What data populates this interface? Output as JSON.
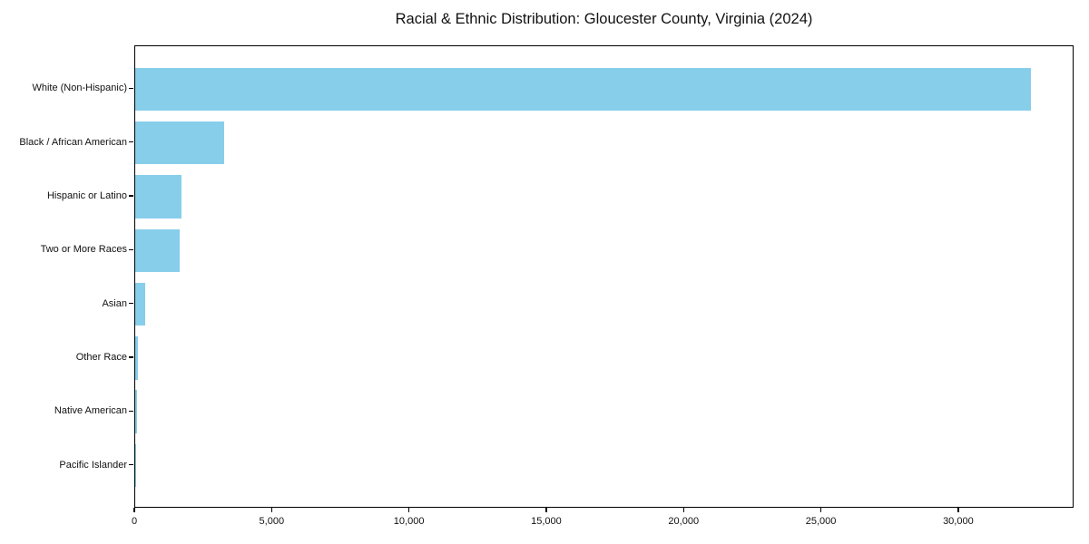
{
  "chart_data": {
    "type": "bar",
    "orientation": "horizontal",
    "title": "Racial & Ethnic Distribution: Gloucester County, Virginia (2024)",
    "categories": [
      "White (Non-Hispanic)",
      "Black / African American",
      "Hispanic or Latino",
      "Two or More Races",
      "Asian",
      "Other Race",
      "Native American",
      "Pacific Islander"
    ],
    "values": [
      32600,
      3230,
      1680,
      1620,
      360,
      110,
      50,
      20
    ],
    "xlabel": "",
    "ylabel": "",
    "xlim": [
      0,
      34200
    ],
    "x_ticks": [
      0,
      5000,
      10000,
      15000,
      20000,
      25000,
      30000
    ],
    "x_tick_labels": [
      "0",
      "5,000",
      "10,000",
      "15,000",
      "20,000",
      "25,000",
      "30,000"
    ],
    "bar_color": "#87CEEB",
    "spine_color": "#000000",
    "grid": false,
    "legend": null
  }
}
